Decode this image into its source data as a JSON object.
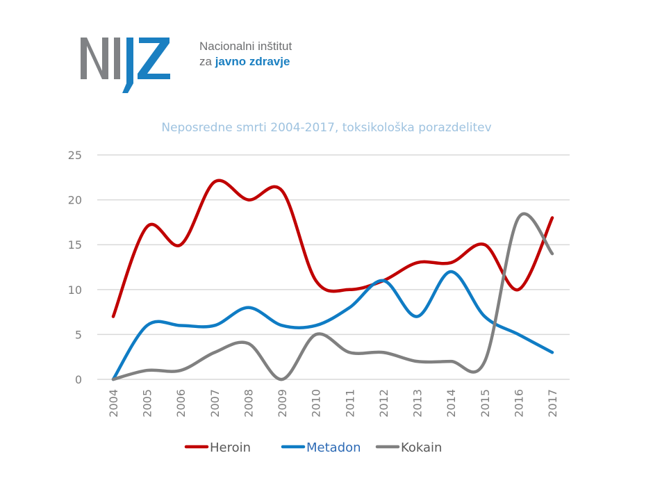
{
  "logo": {
    "mark": "NIJZ",
    "line1": "Nacionalni inštitut",
    "line2_prefix": "za",
    "line2_bold": "javno zdravje",
    "colors": {
      "gray": "#808285",
      "blue": "#1a7fc1"
    }
  },
  "chart_data": {
    "type": "line",
    "title": "Neposredne smrti 2004-2017, toksikološka porazdelitev",
    "xlabel": "",
    "ylabel": "",
    "categories": [
      "2004",
      "2005",
      "2006",
      "2007",
      "2008",
      "2009",
      "2010",
      "2011",
      "2012",
      "2013",
      "2014",
      "2015",
      "2016",
      "2017"
    ],
    "ylim": [
      0,
      25
    ],
    "yticks": [
      0,
      5,
      10,
      15,
      20,
      25
    ],
    "grid": true,
    "legend_placement": "bottom",
    "smooth": true,
    "series": [
      {
        "name": "Heroin",
        "color": "#c00000",
        "values": [
          7,
          17,
          15,
          22,
          20,
          21,
          11,
          10,
          11,
          13,
          13,
          15,
          10,
          18
        ]
      },
      {
        "name": "Metadon",
        "color": "#0f7cc4",
        "values": [
          0,
          6,
          6,
          6,
          8,
          6,
          6,
          8,
          11,
          7,
          12,
          7,
          5,
          3
        ]
      },
      {
        "name": "Kokain",
        "color": "#808080",
        "values": [
          0,
          1,
          1,
          3,
          4,
          0,
          5,
          3,
          3,
          2,
          2,
          2,
          18,
          14
        ]
      }
    ]
  }
}
